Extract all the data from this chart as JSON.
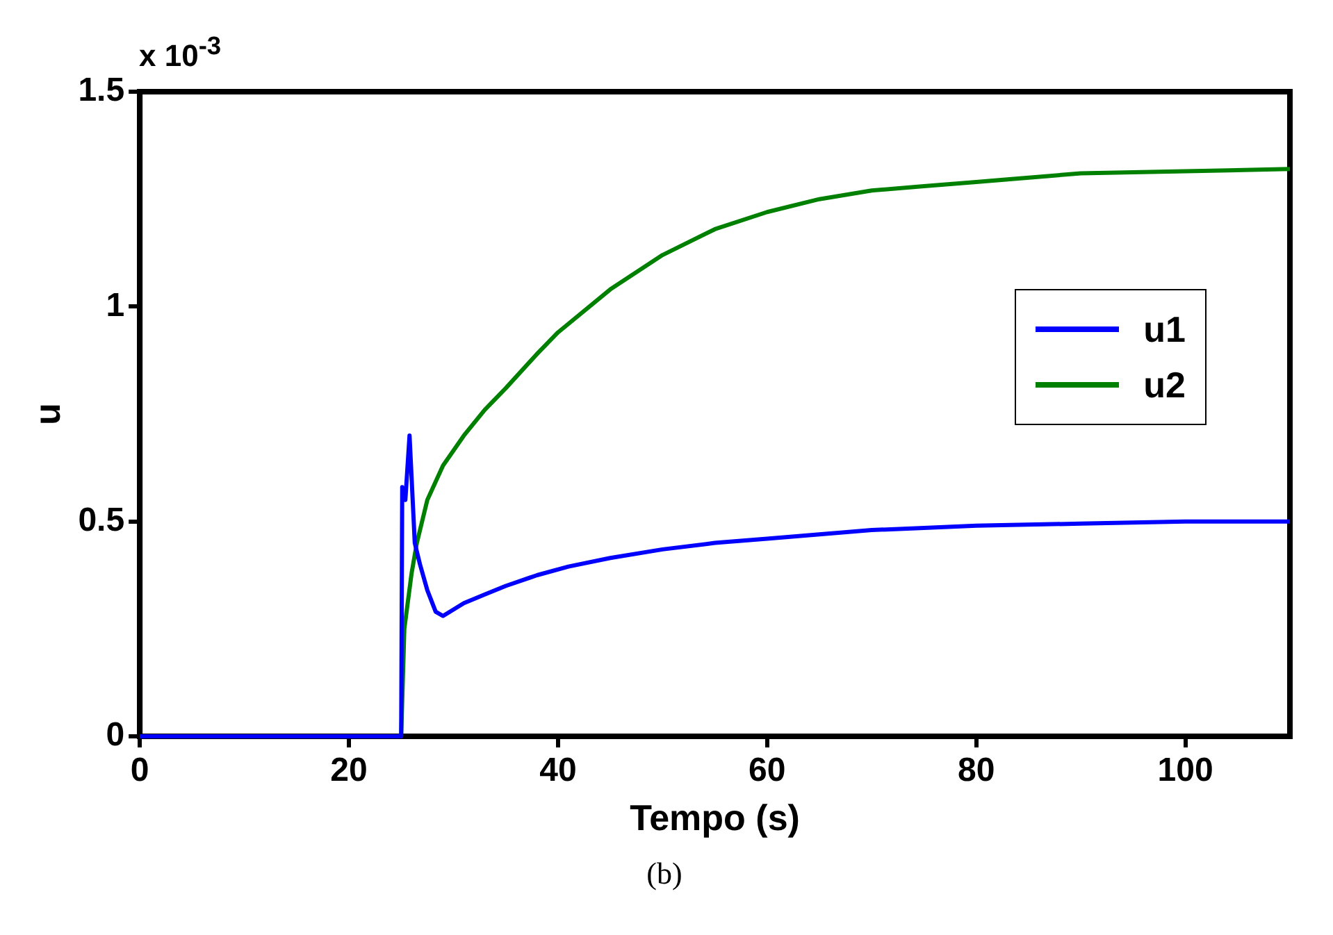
{
  "chart_data": {
    "type": "line",
    "xlabel": "Tempo (s)",
    "ylabel": "u",
    "xlim": [
      0,
      110
    ],
    "xticks": [
      0,
      20,
      40,
      60,
      80,
      100
    ],
    "ylim": [
      0,
      1.5
    ],
    "yticks": [
      0,
      0.5,
      1,
      1.5
    ],
    "grid": false,
    "legend": "right",
    "marker": "none",
    "line_style": "solid",
    "annotations": [
      "x 10$^{-3}$",
      "(b)"
    ],
    "series": [
      {
        "name": "u1",
        "color": "#0000ff",
        "x": [
          0,
          25,
          25.1,
          25.4,
          25.8,
          26.3,
          26.8,
          27.5,
          28.3,
          29,
          31,
          33,
          35,
          38,
          41,
          45,
          50,
          55,
          60,
          65,
          70,
          75,
          80,
          90,
          100,
          110
        ],
        "values": [
          0,
          0,
          0.58,
          0.55,
          0.7,
          0.45,
          0.4,
          0.34,
          0.29,
          0.28,
          0.31,
          0.33,
          0.35,
          0.375,
          0.395,
          0.415,
          0.435,
          0.45,
          0.46,
          0.47,
          0.48,
          0.485,
          0.49,
          0.495,
          0.5,
          0.5
        ]
      },
      {
        "name": "u2",
        "color": "#008000",
        "x": [
          0,
          25,
          25.3,
          26,
          26.5,
          27.5,
          29,
          31,
          33,
          35,
          38,
          40,
          45,
          50,
          55,
          60,
          65,
          70,
          75,
          80,
          90,
          100,
          110
        ],
        "values": [
          0,
          0,
          0.25,
          0.38,
          0.45,
          0.55,
          0.63,
          0.7,
          0.76,
          0.81,
          0.89,
          0.94,
          1.04,
          1.12,
          1.18,
          1.22,
          1.25,
          1.27,
          1.28,
          1.29,
          1.31,
          1.315,
          1.32
        ]
      }
    ]
  }
}
